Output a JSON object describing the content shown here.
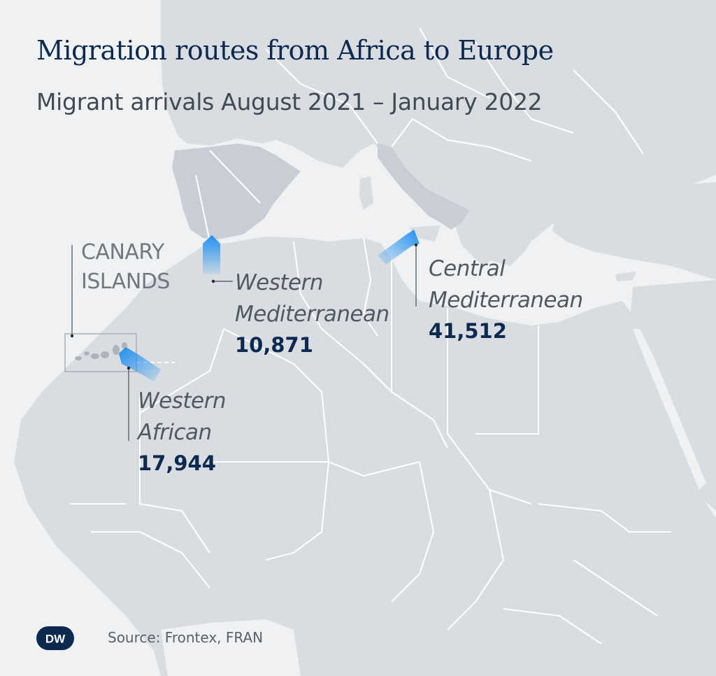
{
  "header": {
    "title": "Migration routes from Africa to Europe",
    "subtitle": "Migrant arrivals August 2021 – January 2022"
  },
  "map": {
    "region_label": "CANARY ISLANDS",
    "colors": {
      "background": "#f0f1f3",
      "land": "#d9dde2",
      "highlight_land": "#c9ced6",
      "borders": "#ffffff",
      "route": "#2f9bf0",
      "value_text": "#0c2a4f"
    },
    "routes": [
      {
        "name": "Western\nMediterranean",
        "value": "10,871"
      },
      {
        "name": "Central\nMediterranean",
        "value": "41,512"
      },
      {
        "name": "Western\nAfrican",
        "value": "17,944"
      }
    ]
  },
  "footer": {
    "logo_text": "DW",
    "source": "Source: Frontex, FRAN"
  }
}
